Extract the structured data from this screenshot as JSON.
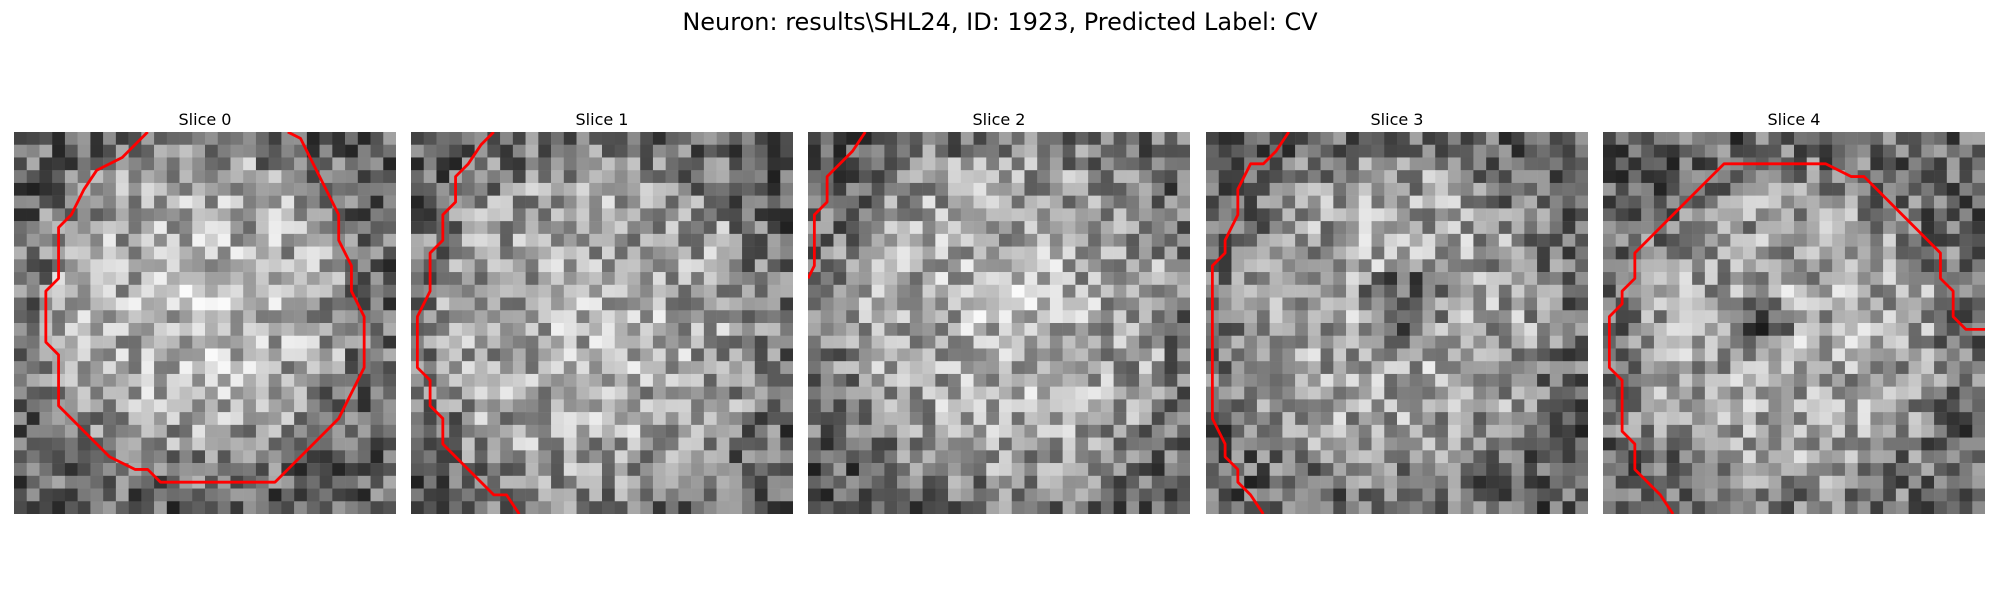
{
  "figure": {
    "title": "Neuron: results\\SHL24, ID: 1923, Predicted Label: CV"
  },
  "colors": {
    "contour": "#ff0000",
    "background": "#ffffff"
  },
  "panels": [
    {
      "label": "Slice 0",
      "seed": 11,
      "cell": {
        "cx": 14,
        "cy": 13,
        "r": 12,
        "bright": 0.18
      },
      "dark_blob": null,
      "contour": [
        [
          10,
          -0.5
        ],
        [
          8,
          1.5
        ],
        [
          6,
          2.5
        ],
        [
          5,
          4
        ],
        [
          4,
          6
        ],
        [
          3,
          7
        ],
        [
          3,
          9
        ],
        [
          3,
          11
        ],
        [
          2,
          12
        ],
        [
          2,
          14
        ],
        [
          2,
          16
        ],
        [
          3,
          17
        ],
        [
          3,
          19
        ],
        [
          3,
          21
        ],
        [
          4,
          22
        ],
        [
          5,
          23
        ],
        [
          6,
          24
        ],
        [
          7,
          25
        ],
        [
          9,
          26
        ],
        [
          10,
          26
        ],
        [
          11,
          27
        ],
        [
          14,
          27
        ],
        [
          17,
          27
        ],
        [
          20,
          27
        ],
        [
          21,
          26
        ],
        [
          22,
          25
        ],
        [
          23,
          24
        ],
        [
          25,
          22
        ],
        [
          26,
          20
        ],
        [
          27,
          18
        ],
        [
          27,
          16
        ],
        [
          27,
          14
        ],
        [
          26,
          12
        ],
        [
          26,
          10
        ],
        [
          25,
          8
        ],
        [
          25,
          6
        ],
        [
          24,
          4
        ],
        [
          23,
          2
        ],
        [
          22,
          0
        ],
        [
          21,
          -0.5
        ]
      ]
    },
    {
      "label": "Slice 1",
      "seed": 23,
      "cell": {
        "cx": 14,
        "cy": 15,
        "r": 13,
        "bright": 0.12
      },
      "dark_blob": null,
      "contour": [
        [
          6,
          -0.5
        ],
        [
          5,
          0.5
        ],
        [
          4,
          2
        ],
        [
          3,
          3
        ],
        [
          3,
          5
        ],
        [
          2,
          6
        ],
        [
          2,
          8
        ],
        [
          1,
          9
        ],
        [
          1,
          12
        ],
        [
          0,
          14
        ],
        [
          0,
          16
        ],
        [
          0,
          18
        ],
        [
          1,
          19
        ],
        [
          1,
          21
        ],
        [
          2,
          22
        ],
        [
          2,
          24
        ],
        [
          3,
          25
        ],
        [
          4,
          26
        ],
        [
          5,
          27
        ],
        [
          6,
          28
        ],
        [
          7,
          28
        ],
        [
          8,
          29.5
        ]
      ]
    },
    {
      "label": "Slice 2",
      "seed": 37,
      "cell": {
        "cx": 15,
        "cy": 14,
        "r": 13,
        "bright": 0.14
      },
      "dark_blob": null,
      "contour": [
        [
          4,
          -0.5
        ],
        [
          3,
          1
        ],
        [
          2,
          2
        ],
        [
          1,
          3
        ],
        [
          1,
          5
        ],
        [
          0,
          6
        ],
        [
          0,
          8
        ],
        [
          0,
          10
        ],
        [
          -0.5,
          11
        ]
      ]
    },
    {
      "label": "Slice 3",
      "seed": 53,
      "cell": {
        "cx": 14,
        "cy": 14,
        "r": 12,
        "bright": 0.1
      },
      "dark_blob": {
        "cx": 15,
        "cy": 13,
        "r": 3.5,
        "dark": 0.35
      },
      "contour": [
        [
          6,
          -0.5
        ],
        [
          5,
          1
        ],
        [
          4,
          2
        ],
        [
          3,
          2
        ],
        [
          2,
          4
        ],
        [
          2,
          6
        ],
        [
          1,
          8
        ],
        [
          1,
          9
        ],
        [
          0,
          10
        ],
        [
          0,
          12
        ],
        [
          0,
          14
        ],
        [
          0,
          16
        ],
        [
          0,
          18
        ],
        [
          0,
          20
        ],
        [
          0,
          22
        ],
        [
          1,
          24
        ],
        [
          1,
          25
        ],
        [
          2,
          26
        ],
        [
          2,
          27
        ],
        [
          3,
          28
        ],
        [
          4,
          29.5
        ]
      ]
    },
    {
      "label": "Slice 4",
      "seed": 71,
      "cell": {
        "cx": 14,
        "cy": 16,
        "r": 12,
        "bright": 0.1
      },
      "dark_blob": {
        "cx": 12,
        "cy": 15,
        "r": 2.5,
        "dark": 0.3
      },
      "contour": [
        [
          5,
          29.5
        ],
        [
          4,
          28
        ],
        [
          3,
          27
        ],
        [
          2,
          26
        ],
        [
          2,
          24
        ],
        [
          1,
          23
        ],
        [
          1,
          21
        ],
        [
          1,
          19
        ],
        [
          0,
          18
        ],
        [
          0,
          16
        ],
        [
          0,
          14
        ],
        [
          1,
          13
        ],
        [
          1,
          12
        ],
        [
          2,
          11
        ],
        [
          2,
          9
        ],
        [
          3,
          8
        ],
        [
          4,
          7
        ],
        [
          5,
          6
        ],
        [
          6,
          5
        ],
        [
          7,
          4
        ],
        [
          8,
          3
        ],
        [
          9,
          2
        ],
        [
          10,
          2
        ],
        [
          12,
          2
        ],
        [
          14,
          2
        ],
        [
          16,
          2
        ],
        [
          17,
          2
        ],
        [
          19,
          3
        ],
        [
          20,
          3
        ],
        [
          21,
          4
        ],
        [
          22,
          5
        ],
        [
          23,
          6
        ],
        [
          24,
          7
        ],
        [
          25,
          8
        ],
        [
          26,
          9
        ],
        [
          26,
          11
        ],
        [
          27,
          12
        ],
        [
          27,
          14
        ],
        [
          28,
          15
        ],
        [
          29.5,
          15
        ]
      ]
    }
  ]
}
